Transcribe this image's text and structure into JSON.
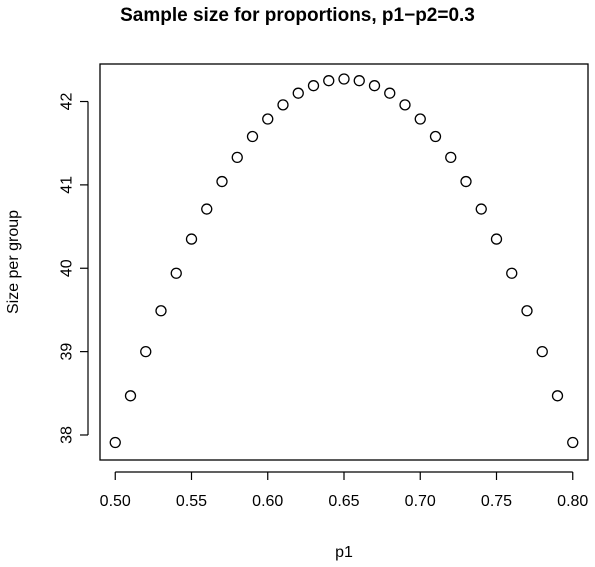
{
  "chart_data": {
    "type": "scatter",
    "title": "Sample size for proportions, p1−p2=0.3",
    "xlabel": "p1",
    "ylabel": "Size per group",
    "xlim": [
      0.49,
      0.81
    ],
    "ylim": [
      37.7,
      42.45
    ],
    "x_ticks": [
      0.5,
      0.55,
      0.6,
      0.65,
      0.7,
      0.75,
      0.8
    ],
    "x_tick_labels": [
      "0.50",
      "0.55",
      "0.60",
      "0.65",
      "0.70",
      "0.75",
      "0.80"
    ],
    "y_ticks": [
      38,
      39,
      40,
      41,
      42
    ],
    "y_tick_labels": [
      "38",
      "39",
      "40",
      "41",
      "42"
    ],
    "grid": false,
    "marker": "open-circle",
    "series": [
      {
        "x": [
          0.5,
          0.51,
          0.52,
          0.53,
          0.54,
          0.55,
          0.56,
          0.57,
          0.58,
          0.59,
          0.6,
          0.61,
          0.62,
          0.63,
          0.64,
          0.65,
          0.66,
          0.67,
          0.68,
          0.69,
          0.7,
          0.71,
          0.72,
          0.73,
          0.74,
          0.75,
          0.76,
          0.77,
          0.78,
          0.79,
          0.8
        ],
        "y": [
          37.91,
          38.47,
          39.0,
          39.49,
          39.94,
          40.35,
          40.71,
          41.04,
          41.33,
          41.58,
          41.79,
          41.96,
          42.1,
          42.19,
          42.25,
          42.27,
          42.25,
          42.19,
          42.1,
          41.96,
          41.79,
          41.58,
          41.33,
          41.04,
          40.71,
          40.35,
          39.94,
          39.49,
          39.0,
          38.47,
          37.91
        ]
      }
    ]
  }
}
